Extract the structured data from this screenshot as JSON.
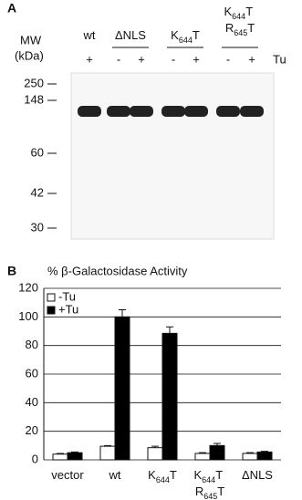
{
  "panel_a": {
    "label": "A",
    "mw_label": "MW",
    "unit_label": "(kDa)",
    "lanes": [
      "wt",
      "ΔNLS",
      "K644T",
      "K644T R645T"
    ],
    "treatments": [
      "+",
      "-",
      "+",
      "-",
      "+",
      "-",
      "+"
    ],
    "treatment_label": "Tu",
    "mw_markers": [
      250,
      148,
      60,
      42,
      30
    ]
  },
  "panel_b": {
    "label": "B"
  },
  "chart_data": {
    "type": "bar",
    "title": "% β-Galactosidase Activity",
    "categories": [
      "vector",
      "wt",
      "K644T",
      "K644T R645T",
      "ΔNLS"
    ],
    "series": [
      {
        "name": "-Tu",
        "color": "#ffffff",
        "values": [
          4,
          9.5,
          8.5,
          4.5,
          4.5
        ],
        "errors": [
          0.5,
          0.5,
          1,
          0.5,
          0.5
        ]
      },
      {
        "name": "+Tu",
        "color": "#000000",
        "values": [
          5,
          100,
          88.5,
          10,
          5.5
        ],
        "errors": [
          0.5,
          5,
          4.5,
          1.5,
          0.5
        ]
      }
    ],
    "ylim": [
      0,
      120
    ],
    "yticks": [
      0,
      20,
      40,
      60,
      80,
      100,
      120
    ],
    "grid": true,
    "legend": "upper-left"
  }
}
